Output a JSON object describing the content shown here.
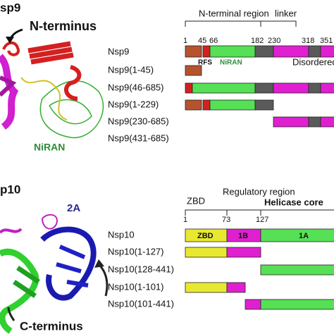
{
  "nsp9": {
    "panel_label": "sp9",
    "n_terminus": "N-terminus",
    "structure_domain": "NiRAN",
    "regions": [
      "N-terminal region",
      "linker"
    ],
    "positions": [
      "1",
      "45",
      "66",
      "182",
      "230",
      "318",
      "351"
    ],
    "domains": [
      "RFS",
      "NiRAN",
      "Disordered region"
    ],
    "constructs": [
      "Nsp9",
      "Nsp9(1-45)",
      "Nsp9(46-685)",
      "Nsp9(1-229)",
      "Nsp9(230-685)",
      "Nsp9(431-685)"
    ]
  },
  "nsp10": {
    "panel_label": "p10",
    "structure_domain": "2A",
    "c_terminus": "C-terminus",
    "regions": [
      "ZBD",
      "Regulatory region",
      "Helicase core"
    ],
    "positions": [
      "1",
      "73",
      "127"
    ],
    "domains": [
      "ZBD",
      "1B",
      "1A"
    ],
    "constructs": [
      "Nsp10",
      "Nsp10(1-127)",
      "Nsp10(128-441)",
      "Nsp10(1-101)",
      "Nsp10(101-441)"
    ]
  }
}
